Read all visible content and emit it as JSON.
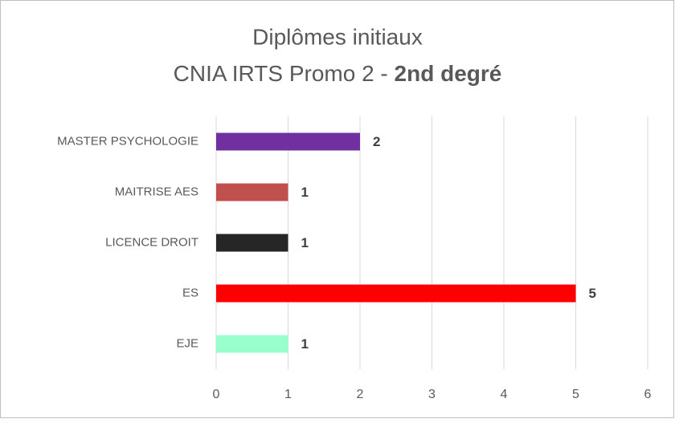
{
  "chart_data": {
    "type": "hbar",
    "title": "Diplômes initiaux",
    "subtitle": "CNIA IRTS Promo 2 - ",
    "subtitle_bold": "2nd degré",
    "categories": [
      "MASTER PSYCHOLOGIE",
      "MAITRISE AES",
      "LICENCE DROIT",
      "ES",
      "EJE"
    ],
    "values": [
      2,
      1,
      1,
      5,
      1
    ],
    "colors": [
      "#7030a0",
      "#c0504d",
      "#262626",
      "#ff0000",
      "#99ffcc"
    ],
    "xlim": [
      0,
      6
    ],
    "xticks": [
      0,
      1,
      2,
      3,
      4,
      5,
      6
    ],
    "grid": true
  }
}
